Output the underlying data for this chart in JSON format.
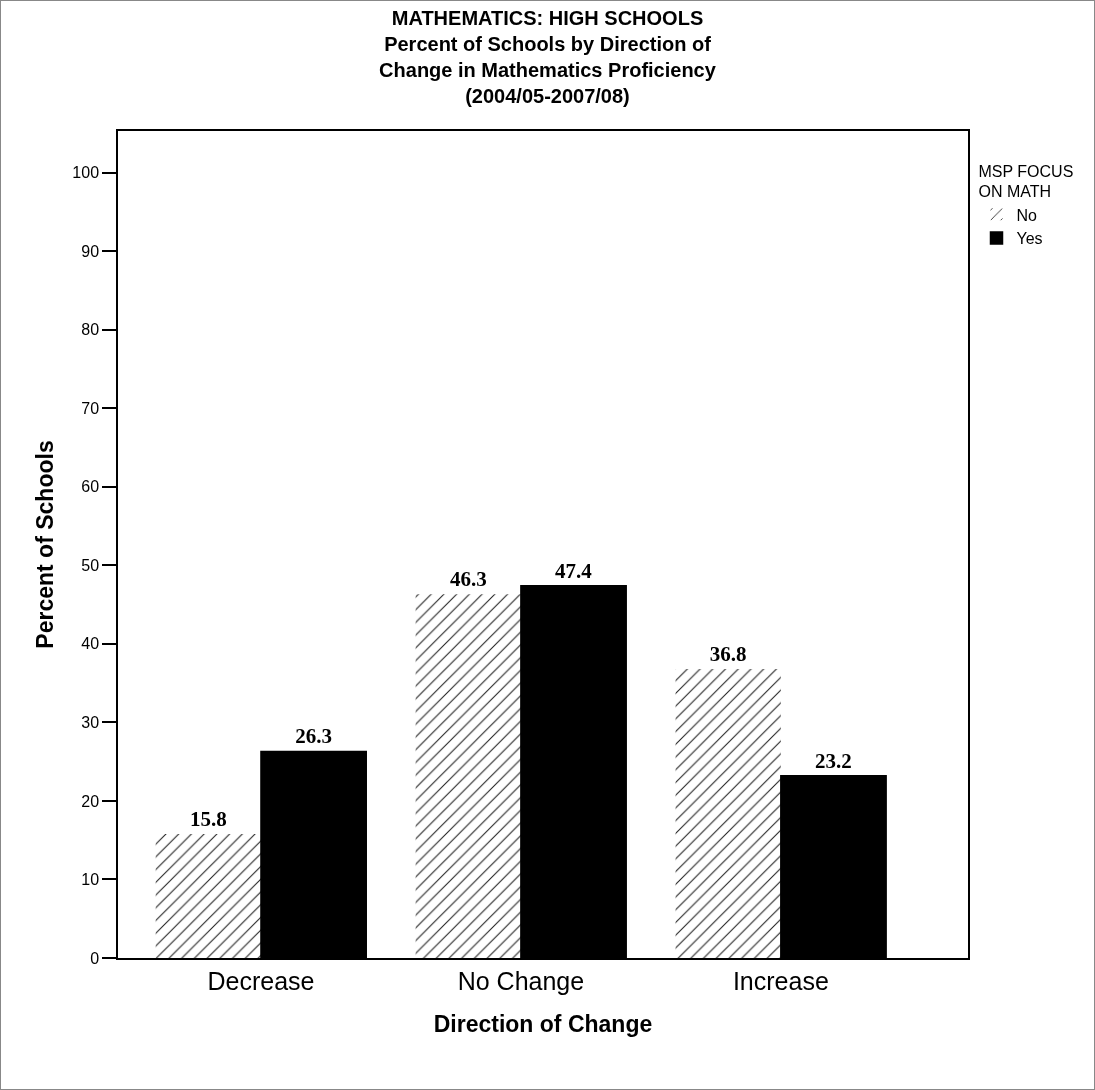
{
  "chart_data": {
    "type": "bar",
    "title": "MATHEMATICS: HIGH SCHOOLS",
    "subtitle": "Percent of Schools by Direction of Change in Mathematics Proficiency (2004/05-2007/08)",
    "xlabel": "Direction of Change",
    "ylabel": "Percent of Schools",
    "legend_title": "MSP FOCUS ON MATH",
    "categories": [
      "Decrease",
      "No Change",
      "Increase"
    ],
    "series": [
      {
        "name": "No",
        "color": "#ffffff",
        "values": [
          15.8,
          46.3,
          36.8
        ]
      },
      {
        "name": "Yes",
        "color": "#000000",
        "values": [
          26.3,
          47.4,
          23.2
        ]
      }
    ],
    "ylim": [
      0,
      105.3
    ],
    "yticks": [
      0,
      10,
      20,
      30,
      40,
      50,
      60,
      70,
      80,
      90,
      100
    ],
    "data_labels": true,
    "legend": "top right",
    "grid": false
  }
}
